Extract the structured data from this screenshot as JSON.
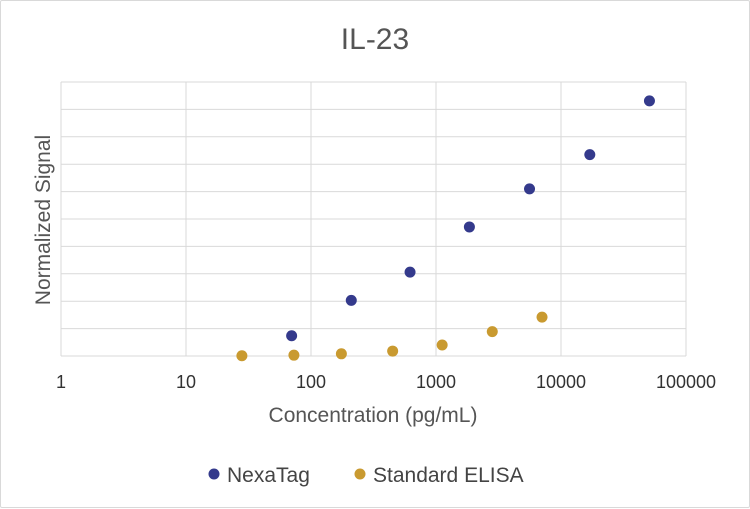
{
  "chart_data": {
    "type": "scatter",
    "title": "IL-23",
    "xlabel": "Concentration (pg/mL)",
    "ylabel": "Normalized Signal",
    "x_scale": "log",
    "xlim": [
      1,
      100000
    ],
    "ylim": [
      0,
      100
    ],
    "x_ticks": [
      1,
      10,
      100,
      1000,
      10000,
      100000
    ],
    "x_tick_labels": [
      "1",
      "10",
      "100",
      "1000",
      "10000",
      "100000"
    ],
    "y_gridlines": [
      0,
      10,
      20,
      30,
      40,
      50,
      60,
      70,
      80,
      90,
      100
    ],
    "y_tick_labels_visible": false,
    "grid": true,
    "legend_position": "bottom",
    "series": [
      {
        "name": "NexaTag",
        "color": "#343a8c",
        "x": [
          70,
          210,
          620,
          1850,
          5600,
          17000,
          51000
        ],
        "y": [
          7.4,
          20.3,
          30.6,
          47.1,
          61.0,
          73.5,
          93.1
        ]
      },
      {
        "name": "Standard ELISA",
        "color": "#c99a30",
        "x": [
          28,
          73,
          175,
          450,
          1120,
          2820,
          7050
        ],
        "y": [
          0.1,
          0.3,
          0.8,
          1.8,
          4.0,
          8.9,
          14.2
        ]
      }
    ]
  }
}
